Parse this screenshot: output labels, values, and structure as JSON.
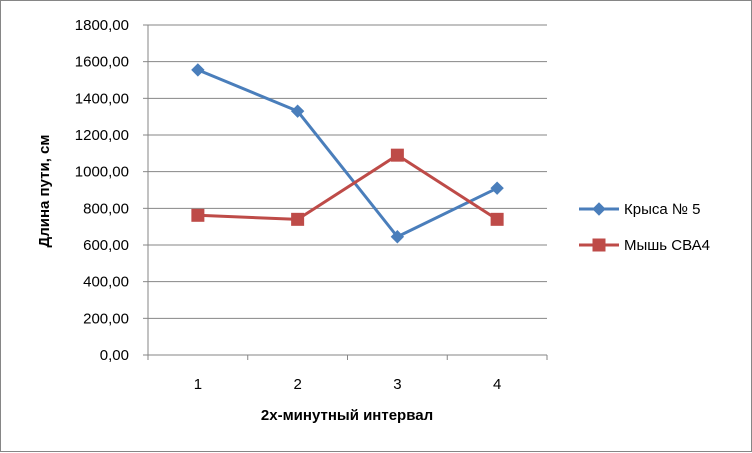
{
  "chart_data": {
    "type": "line",
    "x": [
      "1",
      "2",
      "3",
      "4"
    ],
    "series": [
      {
        "name": "Крыса № 5",
        "values": [
          1555,
          1330,
          645,
          910
        ],
        "color": "#4a7ebb",
        "marker": "diamond"
      },
      {
        "name": "Мышь СВА4",
        "values": [
          762,
          740,
          1090,
          740
        ],
        "color": "#be4b48",
        "marker": "square"
      }
    ],
    "y_ticks": [
      "0,00",
      "200,00",
      "400,00",
      "600,00",
      "800,00",
      "1000,00",
      "1200,00",
      "1400,00",
      "1600,00",
      "1800,00"
    ],
    "ylim": [
      0,
      1800
    ],
    "xlabel": "2х-минутный интервал",
    "ylabel": "Длина пути, см",
    "grid": true,
    "legend": "right",
    "grid_color": "#868686"
  }
}
